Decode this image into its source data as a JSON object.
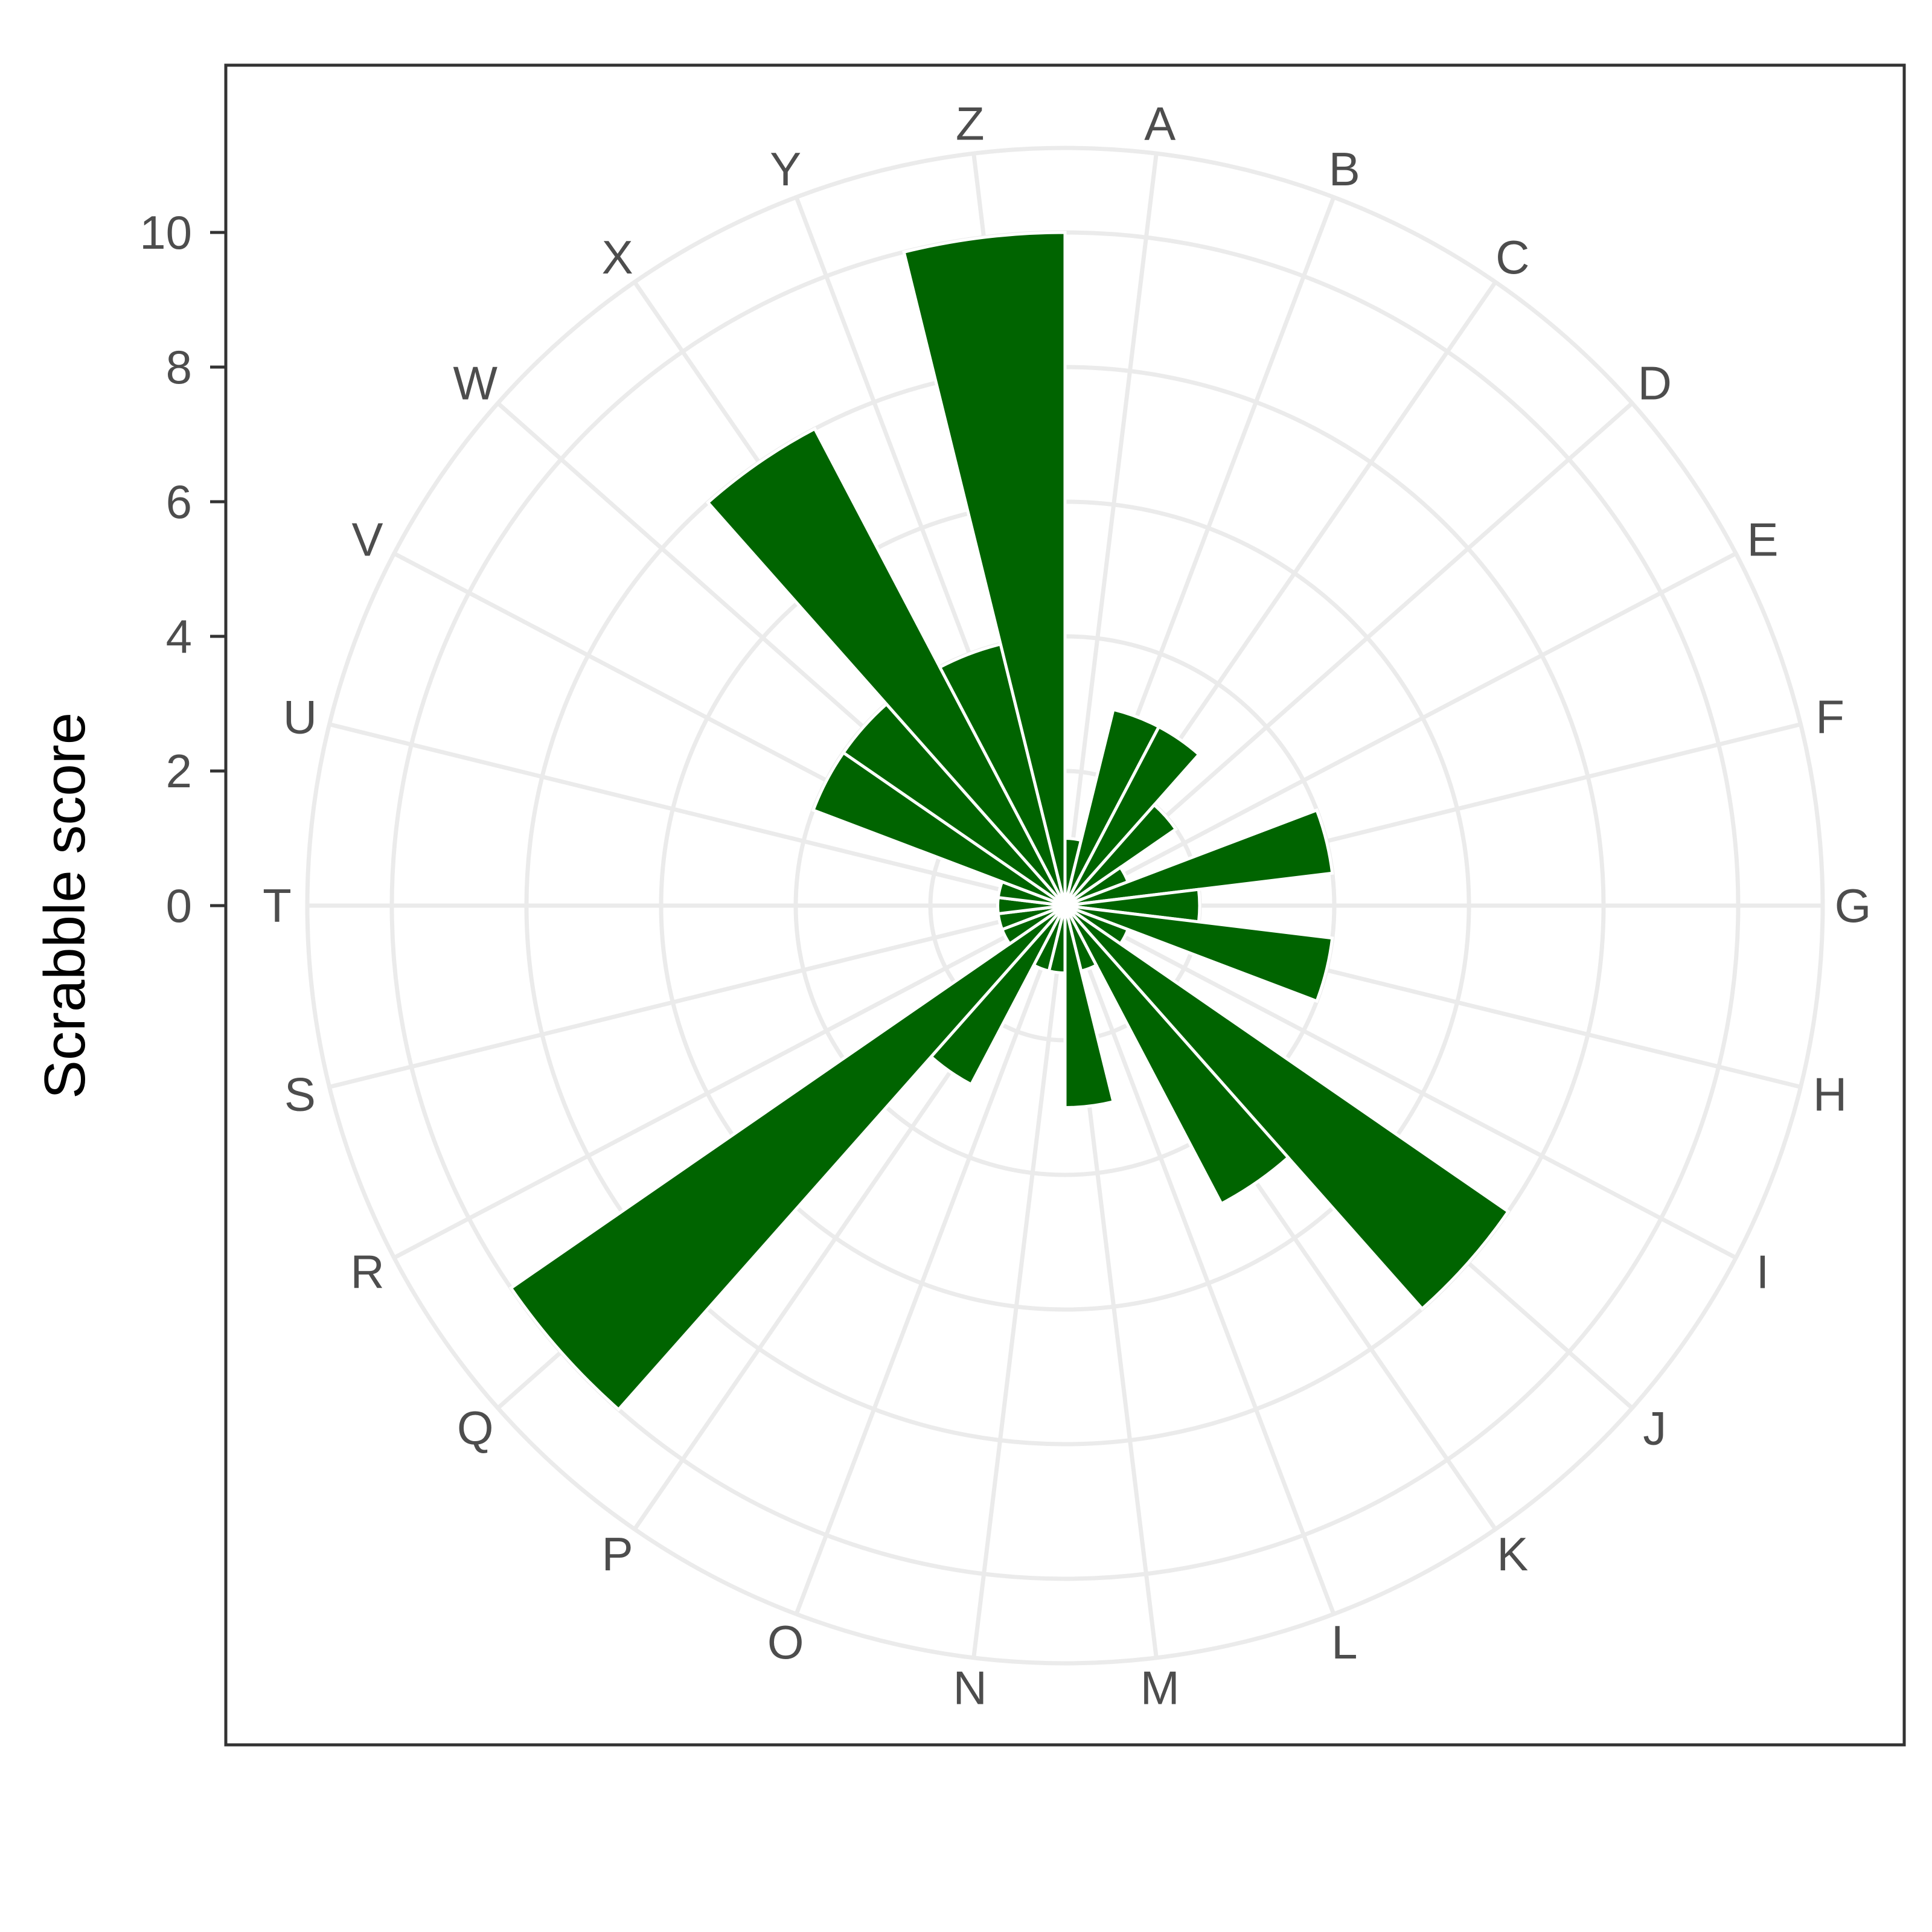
{
  "chart_data": {
    "type": "bar",
    "coord": "polar",
    "categories": [
      "A",
      "B",
      "C",
      "D",
      "E",
      "F",
      "G",
      "H",
      "I",
      "J",
      "K",
      "L",
      "M",
      "N",
      "O",
      "P",
      "Q",
      "R",
      "S",
      "T",
      "U",
      "V",
      "W",
      "X",
      "Y",
      "Z"
    ],
    "values": [
      1,
      3,
      3,
      2,
      1,
      4,
      2,
      4,
      1,
      8,
      5,
      1,
      3,
      1,
      1,
      3,
      10,
      1,
      1,
      1,
      1,
      4,
      4,
      8,
      4,
      10
    ],
    "ylabel": "Scrabble score",
    "xlabel": "",
    "yticks": [
      0,
      2,
      4,
      6,
      8,
      10
    ],
    "ylim": [
      0,
      10
    ],
    "grid": true,
    "bar_color": "#006400",
    "grid_color": "#ebebeb",
    "frame_color": "#333333"
  }
}
